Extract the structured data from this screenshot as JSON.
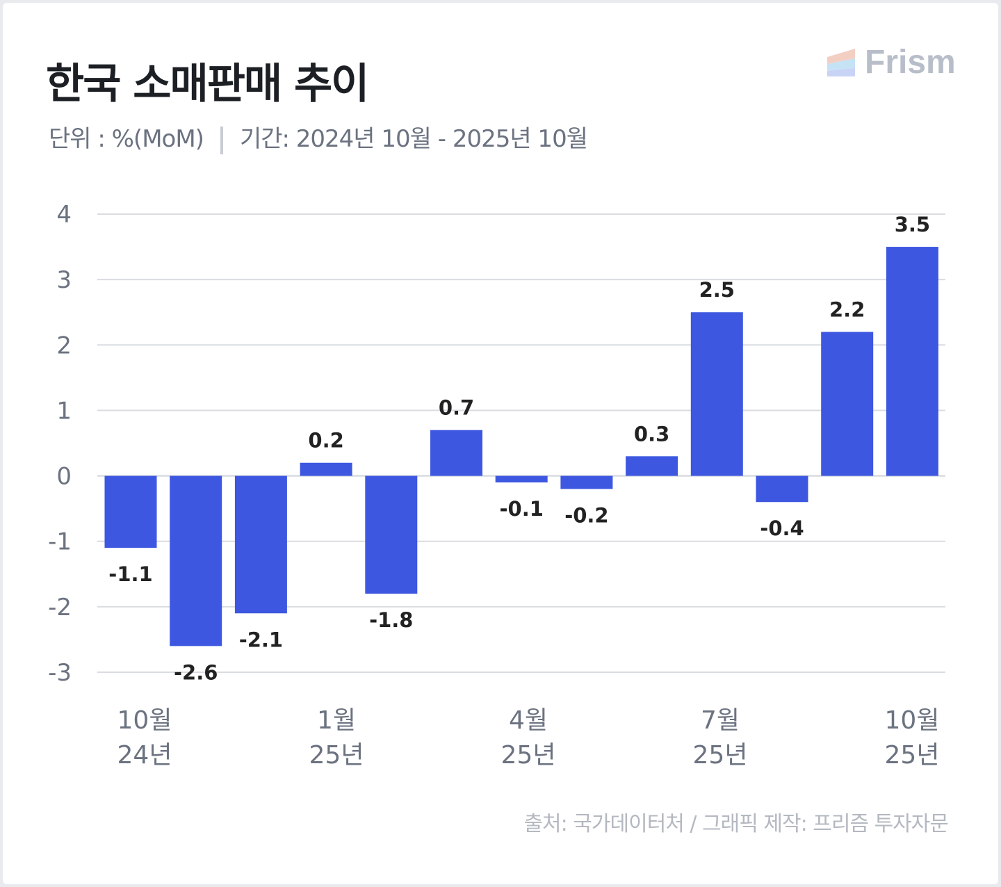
{
  "header": {
    "title": "한국 소매판매 추이",
    "unit": "단위 : %(MoM)",
    "period": "기간: 2024년 10월 - 2025년 10월"
  },
  "logo": {
    "text": "Frism"
  },
  "footer": {
    "source": "출처: 국가데이터처 / 그래픽 제작: 프리즘 투자자문"
  },
  "colors": {
    "bar": "#3d57e0",
    "grid": "#d9dce1",
    "axis_text": "#6b7280"
  },
  "chart_data": {
    "type": "bar",
    "title": "한국 소매판매 추이",
    "ylabel": "%(MoM)",
    "ylim": [
      -3,
      4
    ],
    "yticks": [
      4,
      3,
      2,
      1,
      0,
      -1,
      -2,
      -3
    ],
    "grid": true,
    "categories": [
      "2024-10",
      "2024-11",
      "2024-12",
      "2025-01",
      "2025-02",
      "2025-03",
      "2025-04",
      "2025-05",
      "2025-06",
      "2025-07",
      "2025-08",
      "2025-09",
      "2025-10"
    ],
    "values": [
      -1.1,
      -2.6,
      -2.1,
      0.2,
      -1.8,
      0.7,
      -0.1,
      -0.2,
      0.3,
      2.5,
      -0.4,
      2.2,
      3.5
    ],
    "data_labels": [
      "-1.1",
      "-2.6",
      "-2.1",
      "0.2",
      "-1.8",
      "0.7",
      "-0.1",
      "-0.2",
      "0.3",
      "2.5",
      "-0.4",
      "2.2",
      "3.5"
    ],
    "xtick_labels": [
      {
        "month": "10월",
        "year": "24년"
      },
      {
        "month": "1월",
        "year": "25년"
      },
      {
        "month": "4월",
        "year": "25년"
      },
      {
        "month": "7월",
        "year": "25년"
      },
      {
        "month": "10월",
        "year": "25년"
      }
    ]
  }
}
